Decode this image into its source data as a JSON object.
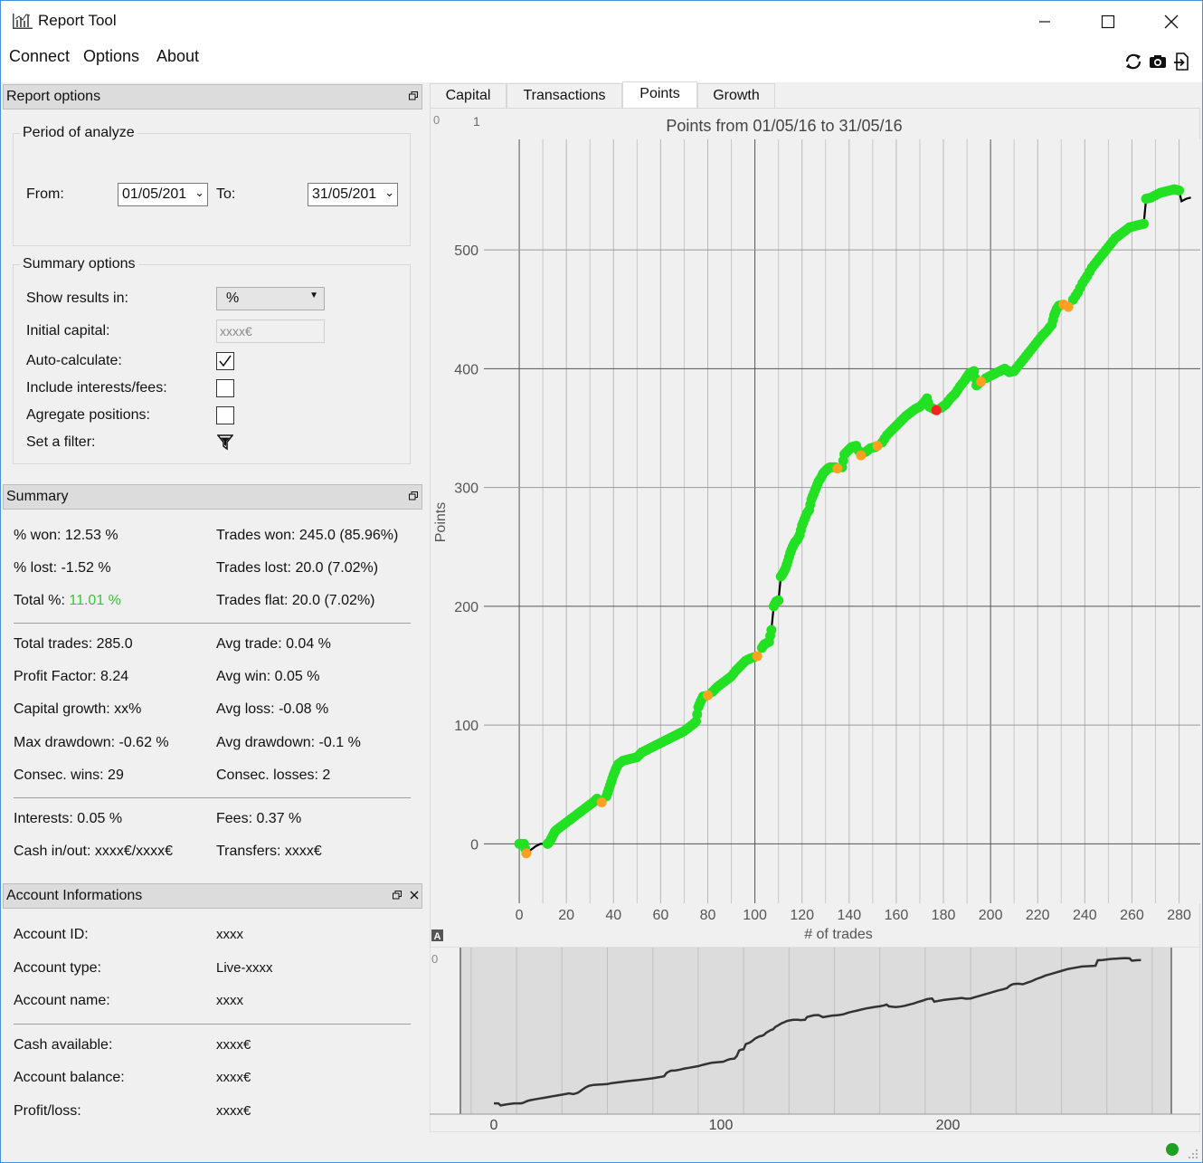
{
  "app": {
    "title": "Report Tool"
  },
  "menu": [
    "Connect",
    "Options",
    "About"
  ],
  "toolbar": {
    "icons": [
      "refresh-icon",
      "camera-icon",
      "export-icon"
    ]
  },
  "report_options": {
    "title": "Report options",
    "period": {
      "title": "Period of analyze",
      "from_label": "From:",
      "from_value": "01/05/201",
      "to_label": "To:",
      "to_value": "31/05/201"
    },
    "summary_options": {
      "title": "Summary options",
      "show_results_label": "Show results in:",
      "show_results_value": "%",
      "initial_capital_label": "Initial capital:",
      "initial_capital_value": "xxxx€",
      "auto_calc_label": "Auto-calculate:",
      "auto_calc_checked": true,
      "include_interests_label": "Include interests/fees:",
      "include_interests_checked": false,
      "aggregate_label": "Agregate positions:",
      "aggregate_checked": false,
      "filter_label": "Set a filter:"
    }
  },
  "summary": {
    "title": "Summary",
    "won_pct": "% won: 12.53 %",
    "lost_pct": "% lost: -1.52 %",
    "total_pct_label": "Total %: ",
    "total_pct_value": "11.01 %",
    "total_pct_color": "#3cc43c",
    "trades_won": "Trades won: 245.0 (85.96%)",
    "trades_lost": "Trades lost: 20.0 (7.02%)",
    "trades_flat": "Trades flat: 20.0 (7.02%)",
    "total_trades": "Total trades: 285.0",
    "profit_factor": "Profit Factor: 8.24",
    "capital_growth": "Capital growth: xx%",
    "max_drawdown": "Max drawdown: -0.62 %",
    "consec_wins": "Consec. wins: 29",
    "avg_trade": "Avg trade: 0.04 %",
    "avg_win": "Avg win: 0.05 %",
    "avg_loss": "Avg loss: -0.08 %",
    "avg_drawdown": "Avg drawdown: -0.1 %",
    "consec_losses": "Consec. losses: 2",
    "interests": "Interests: 0.05 %",
    "fees": "Fees: 0.37 %",
    "cash_inout": "Cash in/out: xxxx€/xxxx€",
    "transfers": "Transfers: xxxx€"
  },
  "account": {
    "title": "Account Informations",
    "rows": [
      {
        "label": "Account ID:",
        "value": "xxxx"
      },
      {
        "label": "Account type:",
        "value": "Live-xxxx"
      },
      {
        "label": "Account name:",
        "value": "xxxx"
      },
      {
        "label": "Cash available:",
        "value": "xxxx€"
      },
      {
        "label": "Account balance:",
        "value": "xxxx€"
      },
      {
        "label": "Profit/loss:",
        "value": "xxxx€"
      }
    ]
  },
  "tabs": [
    {
      "label": "Capital",
      "active": false
    },
    {
      "label": "Transactions",
      "active": false
    },
    {
      "label": "Points",
      "active": true
    },
    {
      "label": "Growth",
      "active": false
    }
  ],
  "chart_data": {
    "type": "line",
    "title": "Points from 01/05/16 to 31/05/16",
    "xlabel": "# of trades",
    "ylabel": "Points",
    "xlim": [
      -15,
      289
    ],
    "ylim": [
      -50,
      593
    ],
    "xticks": [
      0,
      20,
      40,
      60,
      80,
      100,
      120,
      140,
      160,
      180,
      200,
      220,
      240,
      260,
      280
    ],
    "yticks": [
      0,
      100,
      200,
      300,
      400,
      500
    ],
    "grid": true,
    "marker_colors": {
      "win": "#22e022",
      "loss": "#ff2020",
      "flat": "#ffa020",
      "line": "#000000"
    },
    "series": [
      {
        "points": [
          [
            0,
            0
          ],
          [
            2,
            0
          ],
          [
            3,
            -8
          ],
          [
            5,
            -5
          ],
          [
            7,
            -2
          ],
          [
            9,
            0
          ],
          [
            11,
            0
          ],
          [
            12,
            0
          ],
          [
            13,
            2
          ],
          [
            14,
            6
          ],
          [
            15,
            10
          ],
          [
            16,
            12
          ],
          [
            18,
            15
          ],
          [
            20,
            18
          ],
          [
            22,
            21
          ],
          [
            24,
            24
          ],
          [
            26,
            27
          ],
          [
            28,
            30
          ],
          [
            30,
            33
          ],
          [
            32,
            36
          ],
          [
            33,
            38
          ],
          [
            35,
            35
          ],
          [
            37,
            40
          ],
          [
            38,
            46
          ],
          [
            39,
            52
          ],
          [
            40,
            58
          ],
          [
            41,
            63
          ],
          [
            42,
            67
          ],
          [
            44,
            70
          ],
          [
            46,
            71
          ],
          [
            48,
            72
          ],
          [
            50,
            73
          ],
          [
            52,
            77
          ],
          [
            54,
            79
          ],
          [
            56,
            81
          ],
          [
            58,
            83
          ],
          [
            60,
            85
          ],
          [
            62,
            87
          ],
          [
            64,
            89
          ],
          [
            66,
            91
          ],
          [
            68,
            93
          ],
          [
            70,
            95
          ],
          [
            72,
            98
          ],
          [
            74,
            101
          ],
          [
            75,
            103
          ],
          [
            76,
            115
          ],
          [
            77,
            120
          ],
          [
            78,
            124
          ],
          [
            80,
            125
          ],
          [
            82,
            128
          ],
          [
            84,
            132
          ],
          [
            86,
            135
          ],
          [
            88,
            138
          ],
          [
            90,
            141
          ],
          [
            92,
            146
          ],
          [
            94,
            150
          ],
          [
            96,
            154
          ],
          [
            98,
            156
          ],
          [
            101,
            158
          ],
          [
            103,
            165
          ],
          [
            104,
            168
          ],
          [
            106,
            170
          ],
          [
            107,
            180
          ],
          [
            108,
            200
          ],
          [
            109,
            204
          ],
          [
            110,
            205
          ],
          [
            111,
            225
          ],
          [
            112,
            228
          ],
          [
            113,
            232
          ],
          [
            114,
            238
          ],
          [
            115,
            245
          ],
          [
            116,
            250
          ],
          [
            117,
            254
          ],
          [
            118,
            256
          ],
          [
            119,
            260
          ],
          [
            120,
            268
          ],
          [
            121,
            273
          ],
          [
            122,
            278
          ],
          [
            123,
            281
          ],
          [
            124,
            290
          ],
          [
            125,
            295
          ],
          [
            126,
            300
          ],
          [
            127,
            305
          ],
          [
            128,
            308
          ],
          [
            129,
            312
          ],
          [
            130,
            314
          ],
          [
            131,
            316
          ],
          [
            132,
            317
          ],
          [
            134,
            317
          ],
          [
            135,
            316
          ],
          [
            137,
            317
          ],
          [
            138,
            328
          ],
          [
            139,
            330
          ],
          [
            140,
            332
          ],
          [
            141,
            334
          ],
          [
            143,
            335
          ],
          [
            145,
            327
          ],
          [
            147,
            330
          ],
          [
            149,
            333
          ],
          [
            151,
            334
          ],
          [
            152,
            335
          ],
          [
            154,
            338
          ],
          [
            156,
            344
          ],
          [
            158,
            348
          ],
          [
            160,
            352
          ],
          [
            162,
            356
          ],
          [
            164,
            360
          ],
          [
            166,
            363
          ],
          [
            168,
            366
          ],
          [
            170,
            368
          ],
          [
            172,
            372
          ],
          [
            173,
            375
          ],
          [
            174,
            368
          ],
          [
            176,
            366
          ],
          [
            177,
            365
          ],
          [
            179,
            367
          ],
          [
            181,
            370
          ],
          [
            183,
            375
          ],
          [
            185,
            379
          ],
          [
            187,
            385
          ],
          [
            189,
            390
          ],
          [
            190,
            393
          ],
          [
            191,
            396
          ],
          [
            193,
            398
          ],
          [
            194,
            386
          ],
          [
            196,
            389
          ],
          [
            198,
            392
          ],
          [
            200,
            394
          ],
          [
            202,
            396
          ],
          [
            204,
            398
          ],
          [
            206,
            400
          ],
          [
            208,
            397
          ],
          [
            210,
            398
          ],
          [
            212,
            403
          ],
          [
            214,
            408
          ],
          [
            216,
            413
          ],
          [
            218,
            418
          ],
          [
            220,
            423
          ],
          [
            222,
            428
          ],
          [
            224,
            432
          ],
          [
            226,
            437
          ],
          [
            227,
            445
          ],
          [
            228,
            450
          ],
          [
            229,
            453
          ],
          [
            231,
            454
          ],
          [
            233,
            452
          ],
          [
            235,
            458
          ],
          [
            237,
            464
          ],
          [
            239,
            472
          ],
          [
            241,
            478
          ],
          [
            243,
            485
          ],
          [
            245,
            490
          ],
          [
            247,
            495
          ],
          [
            249,
            500
          ],
          [
            251,
            505
          ],
          [
            253,
            510
          ],
          [
            255,
            513
          ],
          [
            257,
            516
          ],
          [
            259,
            519
          ],
          [
            261,
            520
          ],
          [
            263,
            521
          ],
          [
            265,
            522
          ],
          [
            266,
            543
          ],
          [
            268,
            544
          ],
          [
            270,
            546
          ],
          [
            272,
            548
          ],
          [
            274,
            549
          ],
          [
            276,
            550
          ],
          [
            278,
            551
          ],
          [
            280,
            550
          ],
          [
            281,
            541
          ],
          [
            283,
            543
          ],
          [
            285,
            544
          ]
        ],
        "loss_points": [
          [
            177,
            365
          ]
        ],
        "flat_points": [
          [
            3,
            -8
          ],
          [
            35,
            35
          ],
          [
            80,
            125
          ],
          [
            101,
            158
          ],
          [
            135,
            316
          ],
          [
            145,
            327
          ],
          [
            152,
            335
          ],
          [
            196,
            389
          ],
          [
            231,
            454
          ],
          [
            233,
            452
          ]
        ]
      }
    ],
    "overview": {
      "xlim": [
        -15,
        300
      ],
      "xticks": [
        0,
        100,
        200
      ]
    }
  }
}
